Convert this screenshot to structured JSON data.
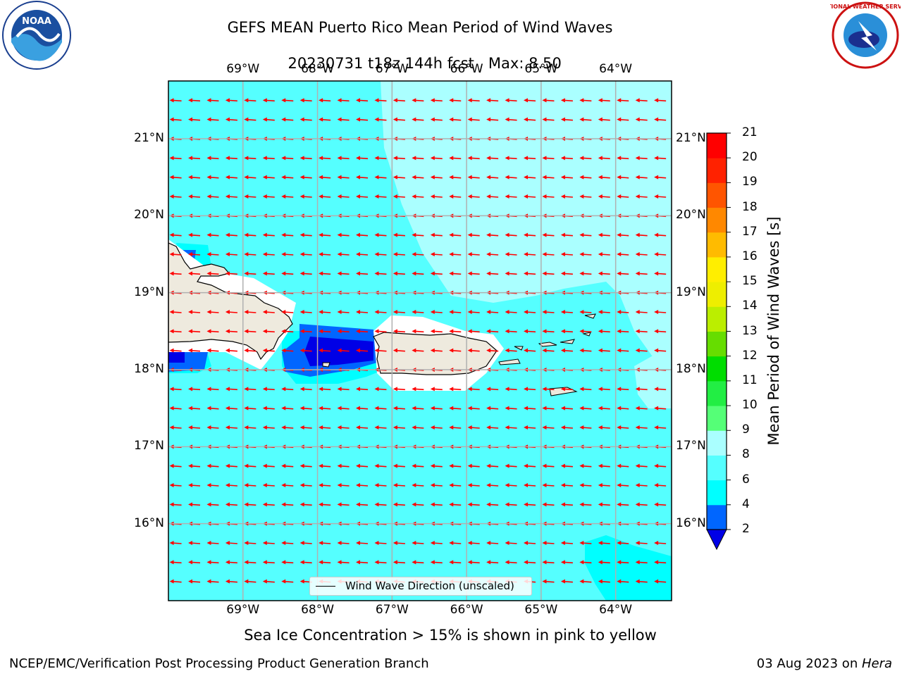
{
  "chart_data": {
    "type": "heatmap",
    "title": "GEFS MEAN Puerto Rico Mean Period of Wind Waves",
    "subtitle": "20230731 t18z 144h fcst",
    "max_label": "Max: 8.50",
    "x_ticks": [
      "69°W",
      "68°W",
      "67°W",
      "66°W",
      "65°W",
      "64°W"
    ],
    "y_ticks": [
      "21°N",
      "20°N",
      "19°N",
      "18°N",
      "17°N",
      "16°N"
    ],
    "x_range": [
      -70.0,
      -63.25
    ],
    "y_range": [
      15.0,
      21.75
    ],
    "colorbar": {
      "label": "Mean Period of Wind Waves [s]",
      "ticks": [
        "2",
        "4",
        "6",
        "8",
        "9",
        "10",
        "11",
        "12",
        "13",
        "14",
        "15",
        "16",
        "17",
        "18",
        "19",
        "20",
        "21"
      ],
      "colors": [
        "#0000e6",
        "#0066ff",
        "#00ffff",
        "#55ffff",
        "#aaffff",
        "#55ff77",
        "#22ee44",
        "#00dd00",
        "#66dd00",
        "#bbee00",
        "#eeee00",
        "#ffee00",
        "#ffbb00",
        "#ff8800",
        "#ff5500",
        "#ff2200",
        "#ff0000"
      ]
    },
    "regions": {
      "open_ocean_period_range": "6-8",
      "northeast_region_period_range": "8-9",
      "mona_passage_period_range": "2-4"
    },
    "legend": "Wind Wave Direction (unscaled)",
    "vector_direction": "westward",
    "land_color": "#eeeade",
    "vector_color": "#ff0000",
    "grid": true
  },
  "note": "Sea Ice Concentration > 15% is shown in pink to yellow",
  "footer_left": "NCEP/EMC/Verification Post Processing Product Generation Branch",
  "footer_right_date": "03 Aug 2023 on ",
  "footer_right_host": "Hera",
  "logos": {
    "left": "NOAA",
    "right": "NATIONAL WEATHER SERVICE"
  }
}
